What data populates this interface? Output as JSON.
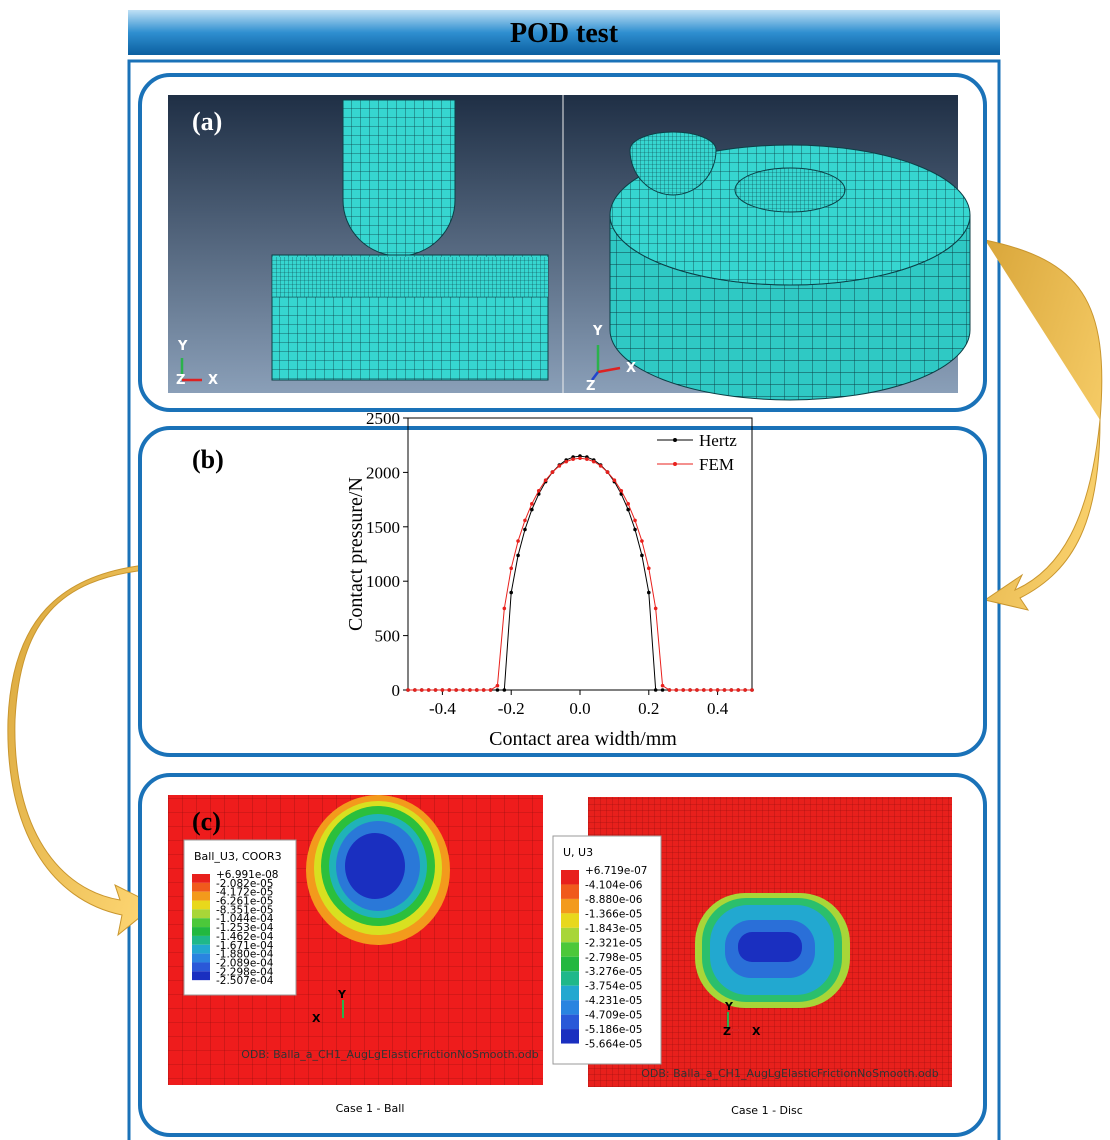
{
  "header": {
    "title": "POD test"
  },
  "panel_a": {
    "label": "(a)",
    "left_axes": [
      "Y",
      "Z",
      "X"
    ],
    "right_axes": [
      "Y",
      "Z",
      "X"
    ]
  },
  "panel_b": {
    "label": "(b)",
    "chart_data": {
      "type": "line",
      "x_label": "Contact area width/mm",
      "y_label": "Contact pressure/N",
      "x": [
        -0.5,
        -0.48,
        -0.46,
        -0.44,
        -0.42,
        -0.4,
        -0.38,
        -0.36,
        -0.34,
        -0.32,
        -0.3,
        -0.28,
        -0.26,
        -0.24,
        -0.22,
        -0.2,
        -0.18,
        -0.16,
        -0.14,
        -0.12,
        -0.1,
        -0.08,
        -0.06,
        -0.04,
        -0.02,
        0,
        0.02,
        0.04,
        0.06,
        0.08,
        0.1,
        0.12,
        0.14,
        0.16,
        0.18,
        0.2,
        0.22,
        0.24,
        0.26,
        0.28,
        0.3,
        0.32,
        0.34,
        0.36,
        0.38,
        0.4,
        0.42,
        0.44,
        0.46,
        0.48,
        0.5
      ],
      "series": [
        {
          "name": "Hertz",
          "color": "#000000",
          "values": [
            0,
            0,
            0,
            0,
            0,
            0,
            0,
            0,
            0,
            0,
            0,
            0,
            0,
            0,
            0,
            896,
            1237,
            1475,
            1658,
            1801,
            1915,
            2003,
            2068,
            2114,
            2141,
            2150,
            2141,
            2114,
            2068,
            2003,
            1915,
            1801,
            1658,
            1475,
            1237,
            896,
            0,
            0,
            0,
            0,
            0,
            0,
            0,
            0,
            0,
            0,
            0,
            0,
            0,
            0,
            0
          ]
        },
        {
          "name": "FEM",
          "color": "#e8201c",
          "values": [
            0,
            0,
            0,
            0,
            0,
            0,
            0,
            0,
            0,
            0,
            0,
            0,
            0,
            40,
            750,
            1119,
            1369,
            1559,
            1711,
            1831,
            1928,
            2003,
            2060,
            2099,
            2122,
            2130,
            2122,
            2099,
            2060,
            2003,
            1928,
            1831,
            1711,
            1559,
            1369,
            1119,
            750,
            40,
            0,
            0,
            0,
            0,
            0,
            0,
            0,
            0,
            0,
            0,
            0,
            0,
            0
          ]
        }
      ],
      "xlim": [
        -0.5,
        0.5
      ],
      "xticks": [
        -0.4,
        -0.2,
        {
          "value": 0,
          "label": "0.0"
        },
        0.2,
        0.4
      ],
      "ylim": [
        0,
        2500
      ],
      "yticks": [
        0,
        500,
        1000,
        1500,
        2000,
        2500
      ],
      "legend": "upper right"
    }
  },
  "panel_c": {
    "label": "(c)",
    "ball": {
      "legend_title": "Ball_U3, COOR3",
      "legend_values": [
        "+6.991e-08",
        "-2.082e-05",
        "-4.172e-05",
        "-6.261e-05",
        "-8.351e-05",
        "-1.044e-04",
        "-1.253e-04",
        "-1.462e-04",
        "-1.671e-04",
        "-1.880e-04",
        "-2.089e-04",
        "-2.298e-04",
        "-2.507e-04"
      ],
      "axes": [
        "Y",
        "X"
      ],
      "odb": "ODB: Balla_a_CH1_AugLgElasticFrictionNoSmooth.odb",
      "caption": "Case 1 - Ball"
    },
    "disc": {
      "legend_title": "U, U3",
      "legend_values": [
        "+6.719e-07",
        "-4.104e-06",
        "-8.880e-06",
        "-1.366e-05",
        "-1.843e-05",
        "-2.321e-05",
        "-2.798e-05",
        "-3.276e-05",
        "-3.754e-05",
        "-4.231e-05",
        "-4.709e-05",
        "-5.186e-05",
        "-5.664e-05"
      ],
      "axes": [
        "Y",
        "Z",
        "X"
      ],
      "odb": "ODB: Balla_a_CH1_AugLgElasticFrictionNoSmooth.odb",
      "caption": "Case 1 - Disc"
    }
  }
}
